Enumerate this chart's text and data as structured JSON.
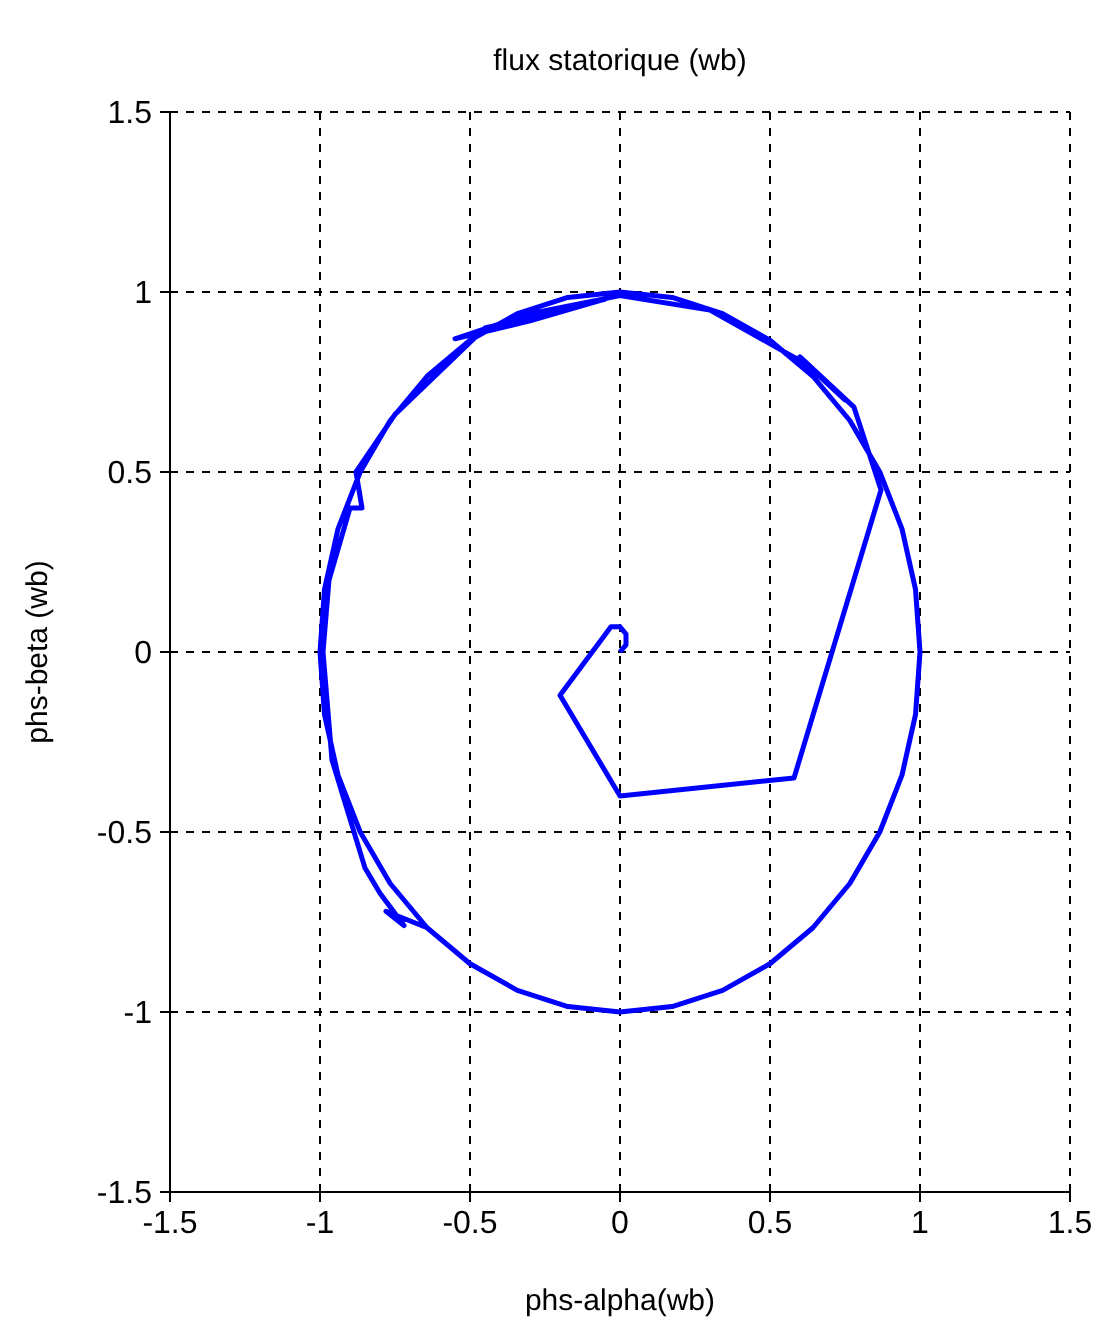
{
  "chart_data": {
    "type": "line",
    "title": "flux statorique (wb)",
    "xlabel": "phs-alpha(wb)",
    "ylabel": "phs-beta (wb)",
    "xlim": [
      -1.5,
      1.5
    ],
    "ylim": [
      -1.5,
      1.5
    ],
    "xticks": [
      -1.5,
      -1,
      -0.5,
      0,
      0.5,
      1,
      1.5
    ],
    "yticks": [
      -1.5,
      -1,
      -0.5,
      0,
      0.5,
      1,
      1.5
    ],
    "grid": true,
    "line_style": "solid",
    "marker": "none",
    "series": [
      {
        "color": "#0000ff",
        "x": [
          0,
          0.02,
          0.02,
          0,
          -0.03,
          -0.2,
          0,
          0.58,
          0.87,
          0.78,
          0.6,
          0.75,
          0.62,
          0.3,
          0,
          -0.3,
          -0.55,
          -0.3,
          -0.05,
          -0.45,
          -0.75,
          -0.88,
          -0.86,
          -0.9,
          -0.97,
          -0.99,
          -0.96,
          -0.85,
          -0.8,
          -0.72,
          -0.78,
          -0.643,
          -0.5,
          -0.342,
          -0.174,
          0,
          0.174,
          0.342,
          0.5,
          0.643,
          0.766,
          0.866,
          0.94,
          0.985,
          1,
          0.985,
          0.94,
          0.866,
          0.766,
          0.643,
          0.5,
          0.342,
          0.174,
          0,
          -0.174,
          -0.342,
          -0.5,
          -0.643,
          -0.766,
          -0.866,
          -0.94,
          -0.985,
          -1,
          -0.985,
          -0.94,
          -0.866,
          -0.766,
          -0.643,
          -0.5,
          -0.342,
          -0.174,
          0,
          0.174,
          0.342,
          0.5,
          0.643,
          0.766,
          0.866,
          0.94,
          0.985,
          1,
          0.985,
          0.94,
          0.866
        ],
        "values": [
          0,
          0.02,
          0.05,
          0.07,
          0.07,
          -0.12,
          -0.4,
          -0.35,
          0.45,
          0.68,
          0.82,
          0.7,
          0.8,
          0.95,
          0.99,
          0.94,
          0.87,
          0.92,
          0.98,
          0.9,
          0.66,
          0.5,
          0.4,
          0.4,
          0.2,
          0,
          -0.3,
          -0.6,
          -0.67,
          -0.76,
          -0.72,
          -0.766,
          -0.866,
          -0.94,
          -0.985,
          -1,
          -0.985,
          -0.94,
          -0.866,
          -0.766,
          -0.643,
          -0.5,
          -0.342,
          -0.174,
          0,
          0.174,
          0.342,
          0.5,
          0.643,
          0.766,
          0.866,
          0.94,
          0.985,
          1,
          0.985,
          0.94,
          0.866,
          0.766,
          0.643,
          0.5,
          0.342,
          0.174,
          0,
          -0.174,
          -0.342,
          -0.5,
          -0.643,
          -0.766,
          -0.866,
          -0.94,
          -0.985,
          -1,
          -0.985,
          -0.94,
          -0.866,
          -0.766,
          -0.643,
          -0.5,
          -0.342,
          -0.174,
          0,
          0.174,
          0.342,
          0.5
        ]
      }
    ]
  }
}
